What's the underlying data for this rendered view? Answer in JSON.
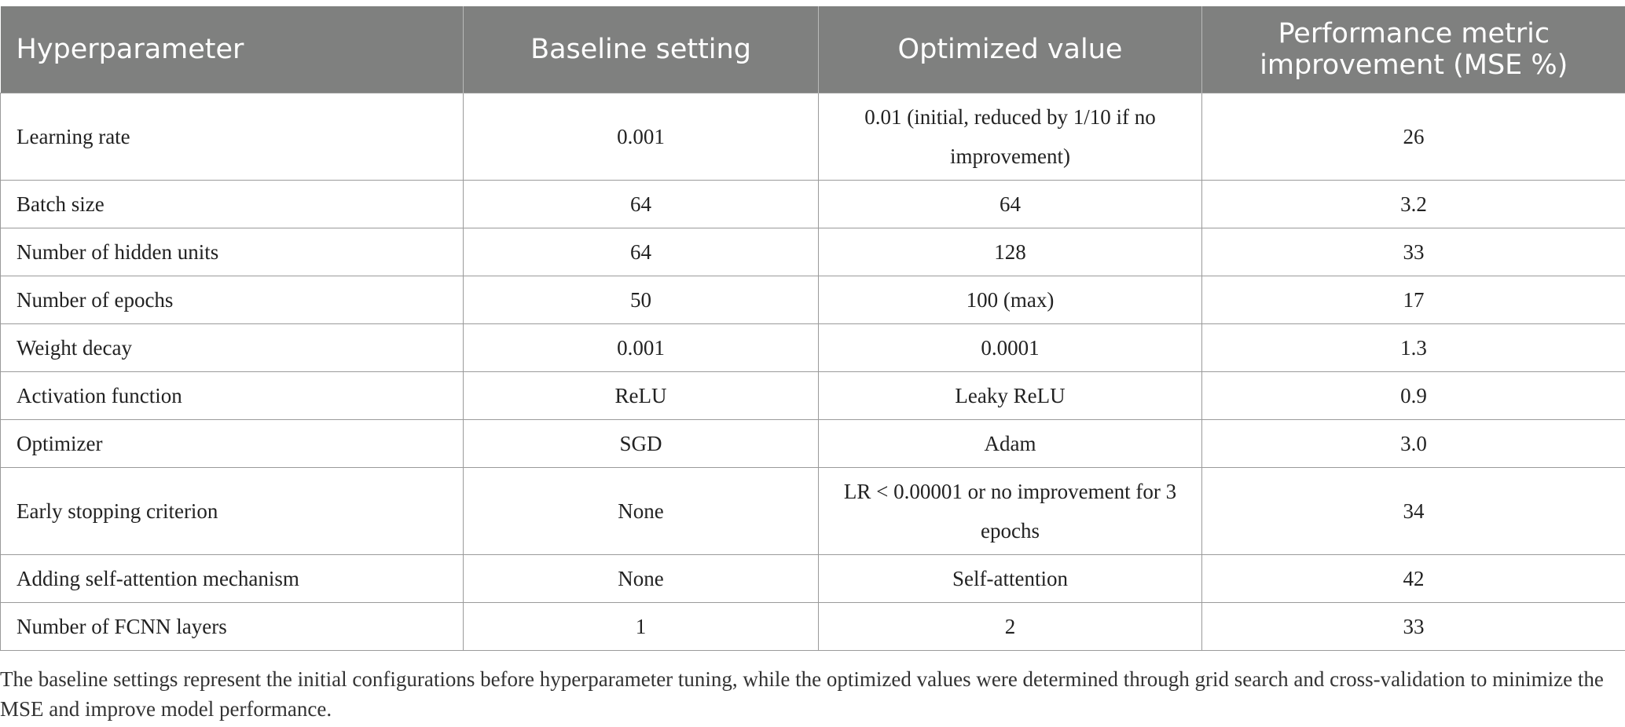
{
  "table": {
    "headers": [
      "Hyperparameter",
      "Baseline setting",
      "Optimized value",
      "Performance metric improvement (MSE %)"
    ],
    "rows": [
      [
        "Learning rate",
        "0.001",
        "0.01 (initial, reduced by 1/10 if no improvement)",
        "26"
      ],
      [
        "Batch size",
        "64",
        "64",
        "3.2"
      ],
      [
        "Number of hidden units",
        "64",
        "128",
        "33"
      ],
      [
        "Number of epochs",
        "50",
        "100 (max)",
        "17"
      ],
      [
        "Weight decay",
        "0.001",
        "0.0001",
        "1.3"
      ],
      [
        "Activation function",
        "ReLU",
        "Leaky ReLU",
        "0.9"
      ],
      [
        "Optimizer",
        "SGD",
        "Adam",
        "3.0"
      ],
      [
        "Early stopping criterion",
        "None",
        "LR < 0.00001 or no improvement for 3 epochs",
        "34"
      ],
      [
        "Adding self-attention mechanism",
        "None",
        "Self-attention",
        "42"
      ],
      [
        "Number of FCNN layers",
        "1",
        "2",
        "33"
      ]
    ]
  },
  "footnote": "The baseline settings represent the initial configurations before hyperparameter tuning, while the optimized values were determined through grid search and cross-validation to minimize the MSE and improve model performance.",
  "colors": {
    "header_bg": "#7f807f",
    "header_text": "#ffffff",
    "border": "#9a9a9a"
  }
}
